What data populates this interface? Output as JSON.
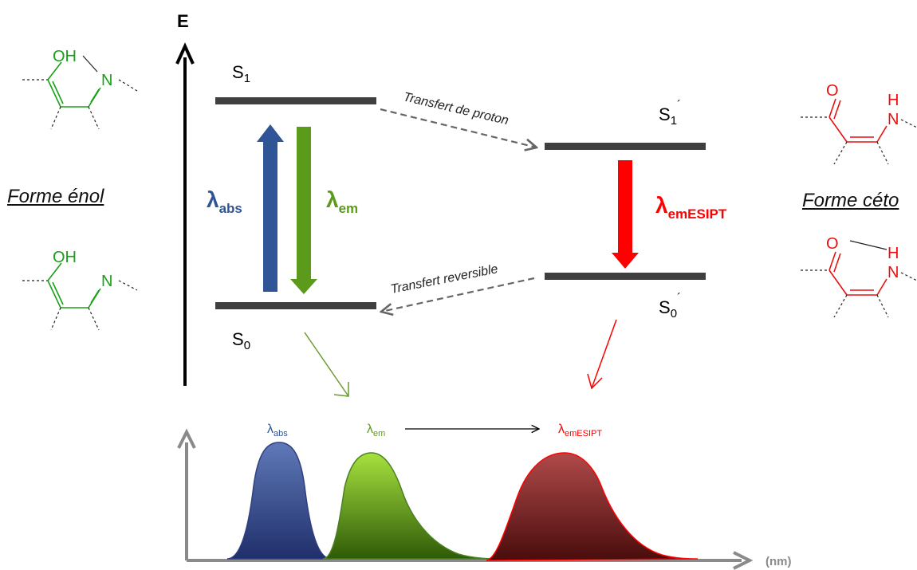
{
  "energy_axis_label": "E",
  "levels": {
    "s1": {
      "base": "S",
      "sub": "1",
      "prime": ""
    },
    "s0": {
      "base": "S",
      "sub": "0",
      "prime": ""
    },
    "s1p": {
      "base": "S",
      "sub": "1",
      "prime": "´"
    },
    "s0p": {
      "base": "S",
      "sub": "0",
      "prime": "´"
    }
  },
  "transitions": {
    "abs": {
      "symbol": "λ",
      "sub": "abs",
      "color": "#2f5597"
    },
    "em": {
      "symbol": "λ",
      "sub": "em",
      "color": "#5b9a1a"
    },
    "esipt": {
      "symbol": "λ",
      "sub": "emESIPT",
      "color": "#ff0000"
    }
  },
  "processes": {
    "proton_transfer": "Transfert de proton",
    "reversible_transfer": "Transfert reversible"
  },
  "forms": {
    "enol": "Forme énol",
    "keto": "Forme céto"
  },
  "molecules": {
    "enol_top": {
      "oxygen": "OH",
      "nitrogen": "N"
    },
    "enol_bottom": {
      "oxygen": "OH",
      "nitrogen": "N"
    },
    "keto_top": {
      "oxygen": "O",
      "hydrogen": "H",
      "nitrogen": "N"
    },
    "keto_bottom": {
      "oxygen": "O",
      "hydrogen": "H",
      "nitrogen": "N"
    }
  },
  "spectrum": {
    "x_unit": "(nm)",
    "peak_labels": {
      "abs": {
        "symbol": "λ",
        "sub": "abs",
        "color": "#2f5597"
      },
      "em": {
        "symbol": "λ",
        "sub": "em",
        "color": "#5b9a1a"
      },
      "esipt": {
        "symbol": "λ",
        "sub": "emESIPT",
        "color": "#ff0000"
      }
    }
  }
}
